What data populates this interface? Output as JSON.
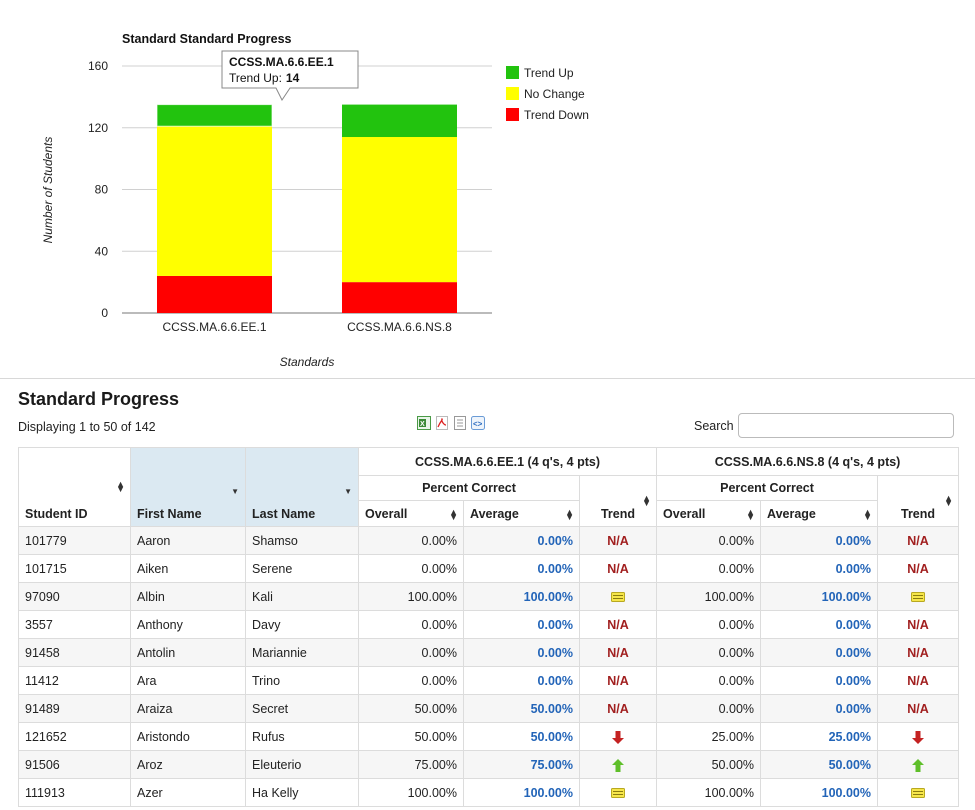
{
  "chart_data": {
    "type": "bar",
    "stacked": true,
    "title": "Standard Standard Progress",
    "xlabel": "Standards",
    "ylabel": "Number of Students",
    "ylim": [
      0,
      160
    ],
    "yticks": [
      0,
      40,
      80,
      120,
      160
    ],
    "categories": [
      "CCSS.MA.6.6.EE.1",
      "CCSS.MA.6.6.NS.8"
    ],
    "series": [
      {
        "name": "Trend Down",
        "color": "#ff0000",
        "values": [
          24,
          20
        ]
      },
      {
        "name": "No Change",
        "color": "#ffff00",
        "values": [
          97,
          94
        ]
      },
      {
        "name": "Trend Up",
        "color": "#22c30e",
        "values": [
          14,
          21
        ]
      }
    ],
    "legend": [
      "Trend Up",
      "No Change",
      "Trend Down"
    ],
    "legend_position": "right",
    "grid": true,
    "tooltip": {
      "title": "CCSS.MA.6.6.EE.1",
      "label": "Trend Up:",
      "value": "14"
    }
  },
  "section": {
    "title": "Standard Progress",
    "displaying": "Displaying 1 to 50 of 142"
  },
  "export_icons": [
    "excel-icon",
    "pdf-icon",
    "text-document-icon",
    "embed-icon"
  ],
  "search": {
    "label": "Search",
    "value": "",
    "placeholder": ""
  },
  "table": {
    "group1": "CCSS.MA.6.6.EE.1 (4 q's, 4 pts)",
    "group2": "CCSS.MA.6.6.NS.8 (4 q's, 4 pts)",
    "percent_correct": "Percent Correct",
    "columns": {
      "student_id": "Student ID",
      "first_name": "First Name",
      "last_name": "Last Name",
      "overall": "Overall",
      "average": "Average",
      "trend": "Trend"
    },
    "rows": [
      {
        "id": "101779",
        "first": "Aaron",
        "last": "Shamso",
        "o1": "0.00%",
        "a1": "0.00%",
        "t1": "N/A",
        "o2": "0.00%",
        "a2": "0.00%",
        "t2": "N/A"
      },
      {
        "id": "101715",
        "first": "Aiken",
        "last": "Serene",
        "o1": "0.00%",
        "a1": "0.00%",
        "t1": "N/A",
        "o2": "0.00%",
        "a2": "0.00%",
        "t2": "N/A"
      },
      {
        "id": "97090",
        "first": "Albin",
        "last": "Kali",
        "o1": "100.00%",
        "a1": "100.00%",
        "t1": "equal",
        "o2": "100.00%",
        "a2": "100.00%",
        "t2": "equal"
      },
      {
        "id": "3557",
        "first": "Anthony",
        "last": "Davy",
        "o1": "0.00%",
        "a1": "0.00%",
        "t1": "N/A",
        "o2": "0.00%",
        "a2": "0.00%",
        "t2": "N/A"
      },
      {
        "id": "91458",
        "first": "Antolin",
        "last": "Mariannie",
        "o1": "0.00%",
        "a1": "0.00%",
        "t1": "N/A",
        "o2": "0.00%",
        "a2": "0.00%",
        "t2": "N/A"
      },
      {
        "id": "11412",
        "first": "Ara",
        "last": "Trino",
        "o1": "0.00%",
        "a1": "0.00%",
        "t1": "N/A",
        "o2": "0.00%",
        "a2": "0.00%",
        "t2": "N/A"
      },
      {
        "id": "91489",
        "first": "Araiza",
        "last": "Secret",
        "o1": "50.00%",
        "a1": "50.00%",
        "t1": "N/A",
        "o2": "0.00%",
        "a2": "0.00%",
        "t2": "N/A"
      },
      {
        "id": "121652",
        "first": "Aristondo",
        "last": "Rufus",
        "o1": "50.00%",
        "a1": "50.00%",
        "t1": "down",
        "o2": "25.00%",
        "a2": "25.00%",
        "t2": "down"
      },
      {
        "id": "91506",
        "first": "Aroz",
        "last": "Eleuterio",
        "o1": "75.00%",
        "a1": "75.00%",
        "t1": "up",
        "o2": "50.00%",
        "a2": "50.00%",
        "t2": "up"
      },
      {
        "id": "111913",
        "first": "Azer",
        "last": "Ha Kelly",
        "o1": "100.00%",
        "a1": "100.00%",
        "t1": "equal",
        "o2": "100.00%",
        "a2": "100.00%",
        "t2": "equal"
      }
    ]
  }
}
